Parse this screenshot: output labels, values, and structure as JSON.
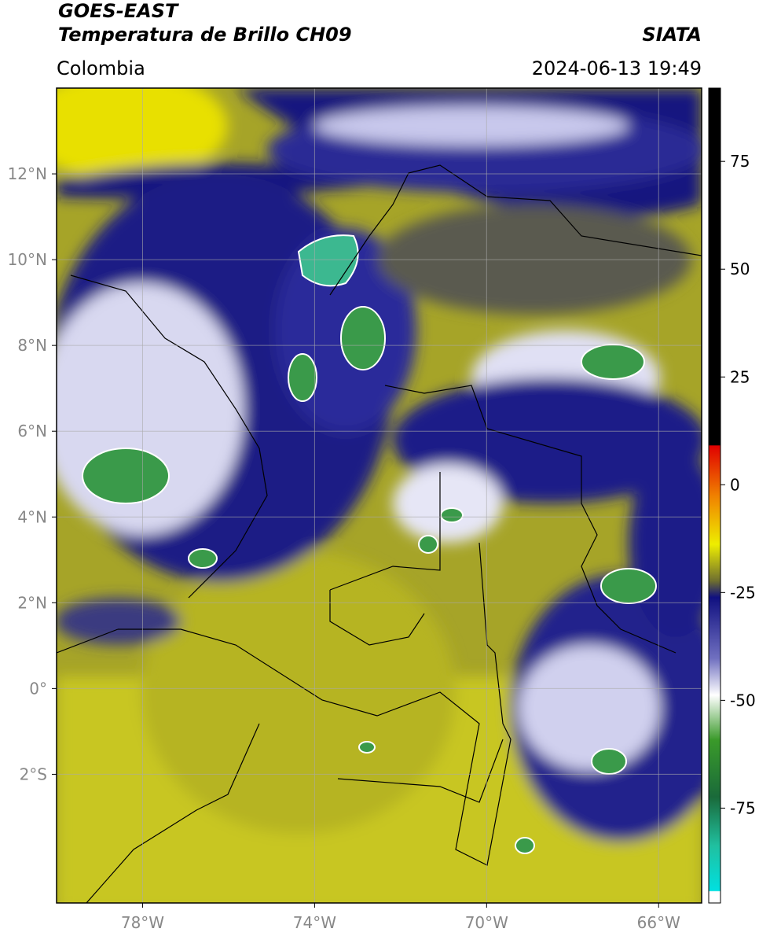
{
  "header": {
    "title_line1": "GOES-EAST",
    "title_line2": "Temperatura de Brillo CH09",
    "source": "SIATA",
    "region": "Colombia",
    "timestamp": "2024-06-13 19:49"
  },
  "map": {
    "xlim": [
      -80,
      -65
    ],
    "ylim": [
      -5,
      14
    ],
    "xticks": [
      {
        "value": -78,
        "label": "78°W"
      },
      {
        "value": -74,
        "label": "74°W"
      },
      {
        "value": -70,
        "label": "70°W"
      },
      {
        "value": -66,
        "label": "66°W"
      }
    ],
    "yticks": [
      {
        "value": 12,
        "label": "12°N"
      },
      {
        "value": 10,
        "label": "10°N"
      },
      {
        "value": 8,
        "label": "8°N"
      },
      {
        "value": 6,
        "label": "6°N"
      },
      {
        "value": 4,
        "label": "4°N"
      },
      {
        "value": 2,
        "label": "2°N"
      },
      {
        "value": 0,
        "label": "0°"
      },
      {
        "value": -2,
        "label": "2°S"
      }
    ],
    "grid": true
  },
  "colorbar": {
    "lim": [
      -97,
      92
    ],
    "ticks": [
      75,
      50,
      25,
      0,
      -25,
      -50,
      -75
    ]
  }
}
